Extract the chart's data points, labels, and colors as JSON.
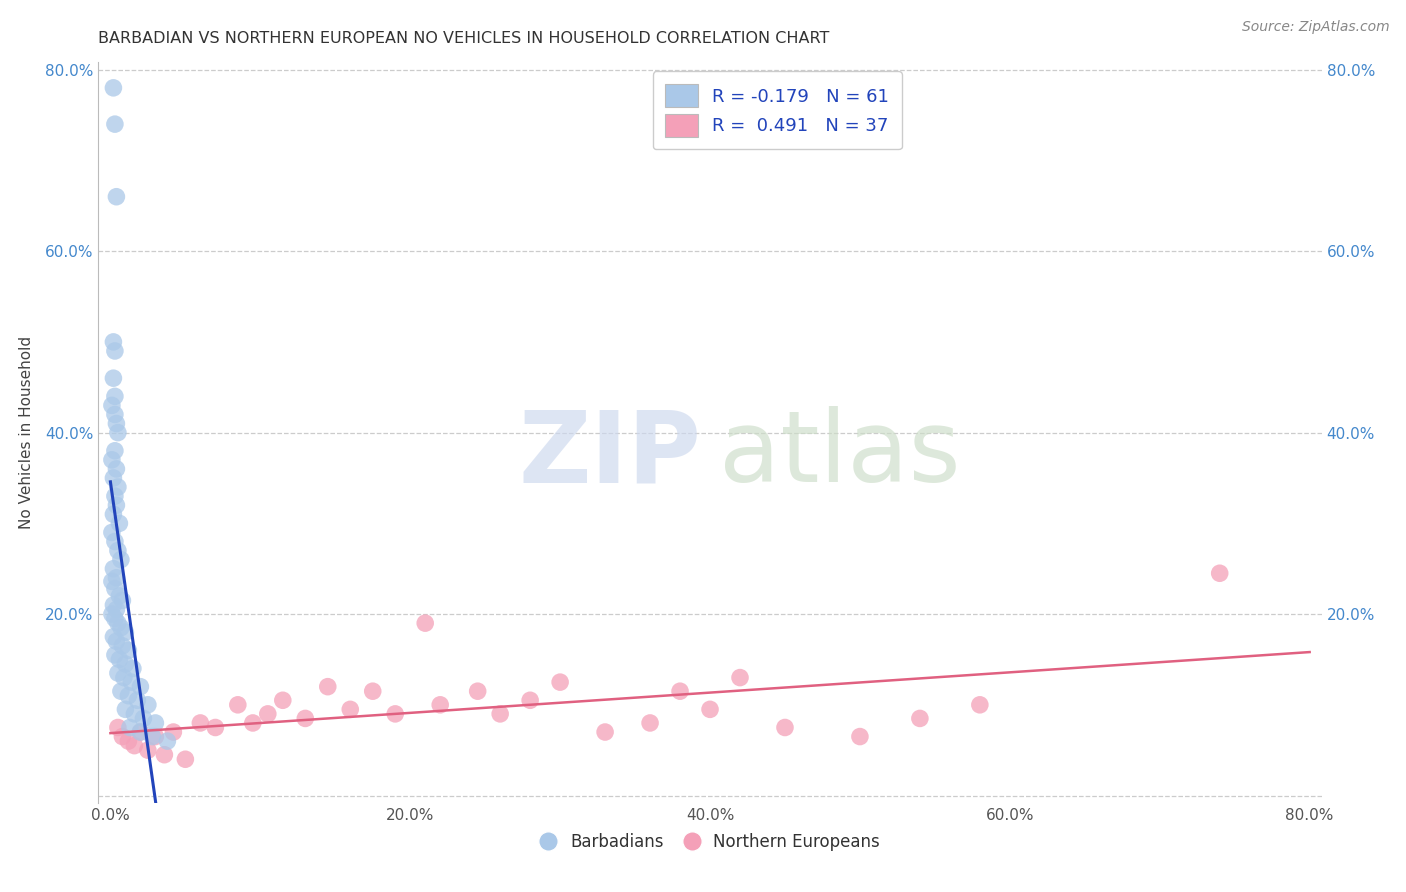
{
  "title": "BARBADIAN VS NORTHERN EUROPEAN NO VEHICLES IN HOUSEHOLD CORRELATION CHART",
  "source": "Source: ZipAtlas.com",
  "ylabel": "No Vehicles in Household",
  "r_barbadian": -0.179,
  "n_barbadian": 61,
  "r_northern": 0.491,
  "n_northern": 37,
  "barbadian_color": "#aac8e8",
  "northern_color": "#f4a0b8",
  "barbadian_line_color": "#2244bb",
  "northern_line_color": "#e06080",
  "watermark_zip_color": "#ccd8ee",
  "watermark_atlas_color": "#ccddc8",
  "grid_color": "#cccccc",
  "title_color": "#333333",
  "source_color": "#888888",
  "left_tick_color": "#4488cc",
  "right_tick_color": "#4488cc",
  "barbadian_points": [
    [
      0.002,
      0.78
    ],
    [
      0.003,
      0.74
    ],
    [
      0.004,
      0.66
    ],
    [
      0.002,
      0.5
    ],
    [
      0.003,
      0.49
    ],
    [
      0.002,
      0.46
    ],
    [
      0.003,
      0.44
    ],
    [
      0.001,
      0.43
    ],
    [
      0.003,
      0.42
    ],
    [
      0.004,
      0.41
    ],
    [
      0.005,
      0.4
    ],
    [
      0.003,
      0.38
    ],
    [
      0.001,
      0.37
    ],
    [
      0.004,
      0.36
    ],
    [
      0.002,
      0.35
    ],
    [
      0.005,
      0.34
    ],
    [
      0.003,
      0.33
    ],
    [
      0.004,
      0.32
    ],
    [
      0.002,
      0.31
    ],
    [
      0.006,
      0.3
    ],
    [
      0.001,
      0.29
    ],
    [
      0.003,
      0.28
    ],
    [
      0.005,
      0.27
    ],
    [
      0.007,
      0.26
    ],
    [
      0.002,
      0.25
    ],
    [
      0.004,
      0.24
    ],
    [
      0.001,
      0.236
    ],
    [
      0.003,
      0.228
    ],
    [
      0.006,
      0.22
    ],
    [
      0.008,
      0.215
    ],
    [
      0.002,
      0.21
    ],
    [
      0.004,
      0.205
    ],
    [
      0.001,
      0.2
    ],
    [
      0.003,
      0.195
    ],
    [
      0.005,
      0.19
    ],
    [
      0.007,
      0.185
    ],
    [
      0.01,
      0.18
    ],
    [
      0.002,
      0.175
    ],
    [
      0.004,
      0.17
    ],
    [
      0.008,
      0.165
    ],
    [
      0.012,
      0.16
    ],
    [
      0.003,
      0.155
    ],
    [
      0.006,
      0.15
    ],
    [
      0.01,
      0.145
    ],
    [
      0.015,
      0.14
    ],
    [
      0.005,
      0.135
    ],
    [
      0.009,
      0.13
    ],
    [
      0.014,
      0.125
    ],
    [
      0.02,
      0.12
    ],
    [
      0.007,
      0.115
    ],
    [
      0.012,
      0.11
    ],
    [
      0.018,
      0.105
    ],
    [
      0.025,
      0.1
    ],
    [
      0.01,
      0.095
    ],
    [
      0.016,
      0.09
    ],
    [
      0.022,
      0.085
    ],
    [
      0.03,
      0.08
    ],
    [
      0.013,
      0.075
    ],
    [
      0.02,
      0.07
    ],
    [
      0.028,
      0.065
    ],
    [
      0.038,
      0.06
    ]
  ],
  "northern_points": [
    [
      0.005,
      0.075
    ],
    [
      0.008,
      0.065
    ],
    [
      0.012,
      0.06
    ],
    [
      0.016,
      0.055
    ],
    [
      0.02,
      0.07
    ],
    [
      0.025,
      0.05
    ],
    [
      0.03,
      0.065
    ],
    [
      0.036,
      0.045
    ],
    [
      0.042,
      0.07
    ],
    [
      0.05,
      0.04
    ],
    [
      0.06,
      0.08
    ],
    [
      0.07,
      0.075
    ],
    [
      0.085,
      0.1
    ],
    [
      0.095,
      0.08
    ],
    [
      0.105,
      0.09
    ],
    [
      0.115,
      0.105
    ],
    [
      0.13,
      0.085
    ],
    [
      0.145,
      0.12
    ],
    [
      0.16,
      0.095
    ],
    [
      0.175,
      0.115
    ],
    [
      0.19,
      0.09
    ],
    [
      0.21,
      0.19
    ],
    [
      0.22,
      0.1
    ],
    [
      0.245,
      0.115
    ],
    [
      0.26,
      0.09
    ],
    [
      0.28,
      0.105
    ],
    [
      0.3,
      0.125
    ],
    [
      0.33,
      0.07
    ],
    [
      0.36,
      0.08
    ],
    [
      0.38,
      0.115
    ],
    [
      0.4,
      0.095
    ],
    [
      0.42,
      0.13
    ],
    [
      0.45,
      0.075
    ],
    [
      0.5,
      0.065
    ],
    [
      0.54,
      0.085
    ],
    [
      0.58,
      0.1
    ],
    [
      0.74,
      0.245
    ]
  ]
}
